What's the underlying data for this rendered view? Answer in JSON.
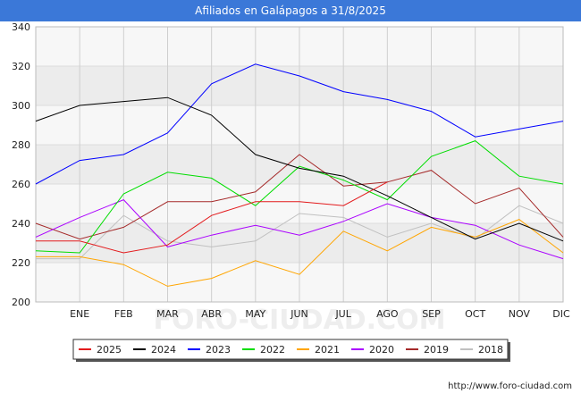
{
  "chart_data": {
    "type": "line",
    "title": "Afiliados en Galápagos a 31/8/2025",
    "categories": [
      "",
      "ENE",
      "FEB",
      "MAR",
      "ABR",
      "MAY",
      "JUN",
      "JUL",
      "AGO",
      "SEP",
      "OCT",
      "NOV",
      "DIC"
    ],
    "ylim": [
      200,
      340
    ],
    "yticks": [
      200,
      220,
      240,
      260,
      280,
      300,
      320,
      340
    ],
    "grid": true,
    "legend_position": "bottom",
    "series": [
      {
        "name": "2025",
        "color": "#e31a1c",
        "values": [
          231,
          231,
          225,
          229,
          244,
          251,
          251,
          249,
          261,
          null,
          null,
          null,
          null
        ]
      },
      {
        "name": "2024",
        "color": "#000000",
        "values": [
          292,
          300,
          302,
          304,
          295,
          275,
          268,
          264,
          254,
          243,
          232,
          240,
          231
        ]
      },
      {
        "name": "2023",
        "color": "#0000ff",
        "values": [
          260,
          272,
          275,
          286,
          311,
          321,
          315,
          307,
          303,
          297,
          284,
          288,
          292
        ]
      },
      {
        "name": "2022",
        "color": "#00dd00",
        "values": [
          226,
          225,
          255,
          266,
          263,
          249,
          269,
          262,
          252,
          274,
          282,
          264,
          260
        ]
      },
      {
        "name": "2021",
        "color": "#ffa500",
        "values": [
          223,
          223,
          219,
          208,
          212,
          221,
          214,
          236,
          226,
          238,
          233,
          242,
          225
        ]
      },
      {
        "name": "2020",
        "color": "#aa00ff",
        "values": [
          233,
          243,
          252,
          228,
          234,
          239,
          234,
          241,
          250,
          243,
          239,
          229,
          222
        ]
      },
      {
        "name": "2019",
        "color": "#a52a2a",
        "values": [
          240,
          232,
          238,
          251,
          251,
          256,
          275,
          259,
          261,
          267,
          250,
          258,
          233
        ]
      },
      {
        "name": "2018",
        "color": "#c0c0c0",
        "values": [
          222,
          222,
          244,
          231,
          228,
          231,
          245,
          243,
          233,
          240,
          232,
          249,
          240
        ]
      }
    ]
  },
  "watermark": "FORO-CIUDAD.COM",
  "source": "http://www.foro-ciudad.com"
}
